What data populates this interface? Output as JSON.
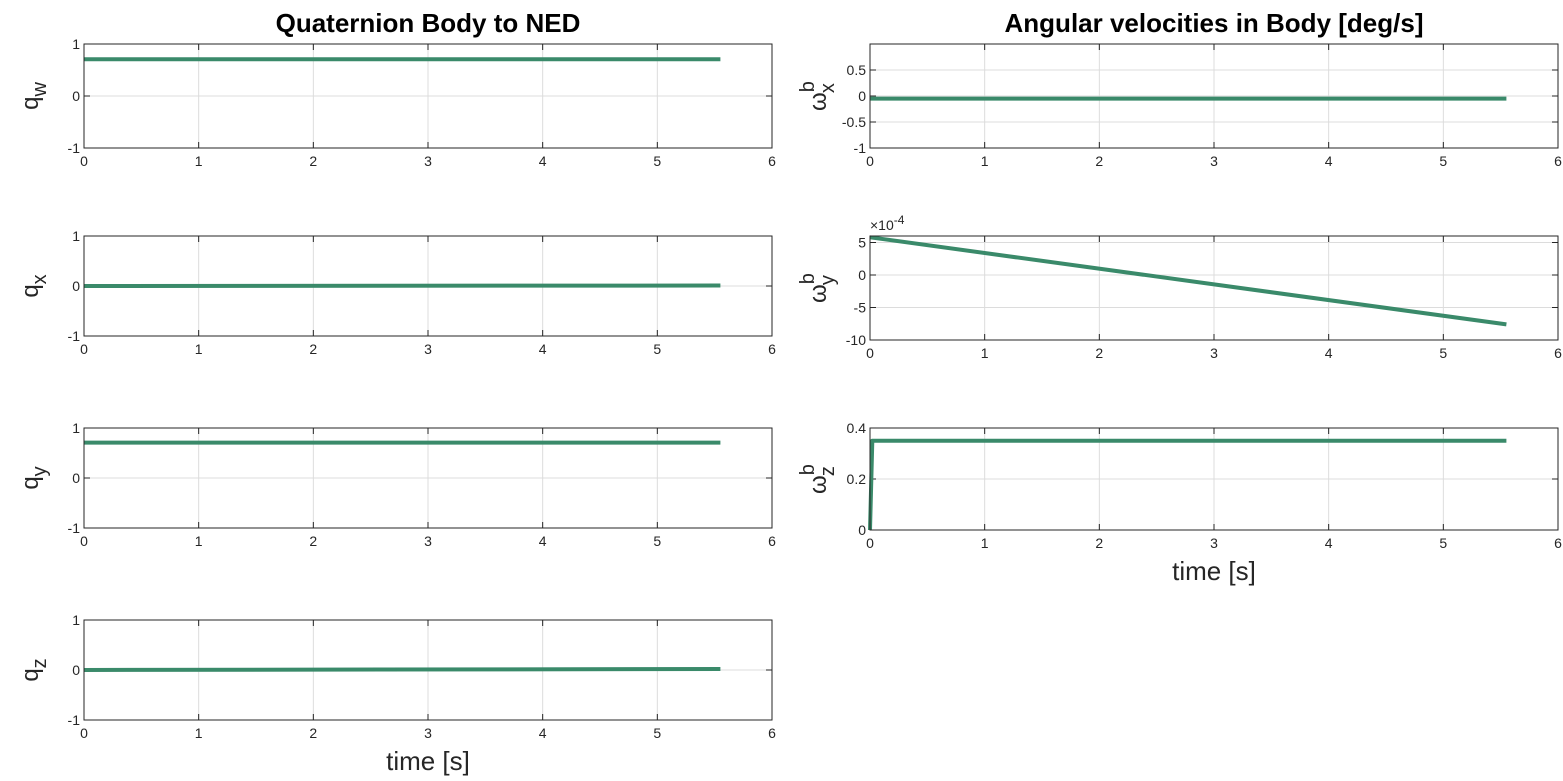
{
  "chart_data": [
    {
      "type": "line",
      "title": "Quaternion Body to NED",
      "ylabel": {
        "base": "q",
        "sub": "w"
      },
      "xlabel": "",
      "xlim": [
        0,
        6
      ],
      "ylim": [
        -1,
        1
      ],
      "xticks": [
        0,
        1,
        2,
        3,
        4,
        5,
        6
      ],
      "yticks": [
        -1,
        0,
        1
      ],
      "yticklabels": [
        "-1",
        "0",
        "1"
      ],
      "grid": true,
      "color": "#3a8a6a",
      "series": [
        {
          "x": [
            0,
            5.55
          ],
          "y": [
            0.707,
            0.707
          ]
        }
      ]
    },
    {
      "type": "line",
      "title": "",
      "ylabel": {
        "base": "q",
        "sub": "x"
      },
      "xlabel": "",
      "xlim": [
        0,
        6
      ],
      "ylim": [
        -1,
        1
      ],
      "xticks": [
        0,
        1,
        2,
        3,
        4,
        5,
        6
      ],
      "yticks": [
        -1,
        0,
        1
      ],
      "yticklabels": [
        "-1",
        "0",
        "1"
      ],
      "grid": true,
      "color": "#3a8a6a",
      "series": [
        {
          "x": [
            0,
            5.55
          ],
          "y": [
            0.0,
            0.01
          ]
        }
      ]
    },
    {
      "type": "line",
      "title": "",
      "ylabel": {
        "base": "q",
        "sub": "y"
      },
      "xlabel": "",
      "xlim": [
        0,
        6
      ],
      "ylim": [
        -1,
        1
      ],
      "xticks": [
        0,
        1,
        2,
        3,
        4,
        5,
        6
      ],
      "yticks": [
        -1,
        0,
        1
      ],
      "yticklabels": [
        "-1",
        "0",
        "1"
      ],
      "grid": true,
      "color": "#3a8a6a",
      "series": [
        {
          "x": [
            0,
            5.55
          ],
          "y": [
            0.707,
            0.707
          ]
        }
      ]
    },
    {
      "type": "line",
      "title": "",
      "ylabel": {
        "base": "q",
        "sub": "z"
      },
      "xlabel": "time [s]",
      "xlim": [
        0,
        6
      ],
      "ylim": [
        -1,
        1
      ],
      "xticks": [
        0,
        1,
        2,
        3,
        4,
        5,
        6
      ],
      "yticks": [
        -1,
        0,
        1
      ],
      "yticklabels": [
        "-1",
        "0",
        "1"
      ],
      "grid": true,
      "color": "#3a8a6a",
      "series": [
        {
          "x": [
            0,
            5.55
          ],
          "y": [
            0.0,
            0.02
          ]
        }
      ]
    },
    {
      "type": "line",
      "title": "Angular velocities in Body [deg/s]",
      "ylabel": {
        "base": "ω",
        "sup": "b",
        "sub": "x"
      },
      "xlabel": "",
      "xlim": [
        0,
        6
      ],
      "ylim": [
        -1,
        1
      ],
      "xticks": [
        0,
        1,
        2,
        3,
        4,
        5,
        6
      ],
      "yticks": [
        -1,
        -0.5,
        0,
        0.5
      ],
      "yticklabels": [
        "-1",
        "-0.5",
        "0",
        "0.5"
      ],
      "grid": true,
      "color": "#3a8a6a",
      "series": [
        {
          "x": [
            0,
            5.55
          ],
          "y": [
            -0.05,
            -0.05
          ]
        }
      ]
    },
    {
      "type": "line",
      "title": "",
      "ylabel": {
        "base": "ω",
        "sup": "b",
        "sub": "y"
      },
      "xlabel": "",
      "xlim": [
        0,
        6
      ],
      "ylim": [
        -10,
        6
      ],
      "xticks": [
        0,
        1,
        2,
        3,
        4,
        5,
        6
      ],
      "yticks": [
        -10,
        -5,
        0,
        5
      ],
      "yticklabels": [
        "-10",
        "-5",
        "0",
        "5"
      ],
      "exponent_base": "×10",
      "exponent_power": "-4",
      "grid": true,
      "color": "#3a8a6a",
      "series": [
        {
          "x": [
            0,
            5.55
          ],
          "y": [
            5.8,
            -7.6
          ]
        }
      ]
    },
    {
      "type": "line",
      "title": "",
      "ylabel": {
        "base": "ω",
        "sup": "b",
        "sub": "z"
      },
      "xlabel": "time [s]",
      "xlim": [
        0,
        6
      ],
      "ylim": [
        0,
        0.4
      ],
      "xticks": [
        0,
        1,
        2,
        3,
        4,
        5,
        6
      ],
      "yticks": [
        0,
        0.2,
        0.4
      ],
      "yticklabels": [
        "0",
        "0.2",
        "0.4"
      ],
      "grid": true,
      "color": "#3a8a6a",
      "series": [
        {
          "x": [
            0,
            0.02,
            5.55
          ],
          "y": [
            0,
            0.35,
            0.35
          ]
        }
      ]
    }
  ]
}
